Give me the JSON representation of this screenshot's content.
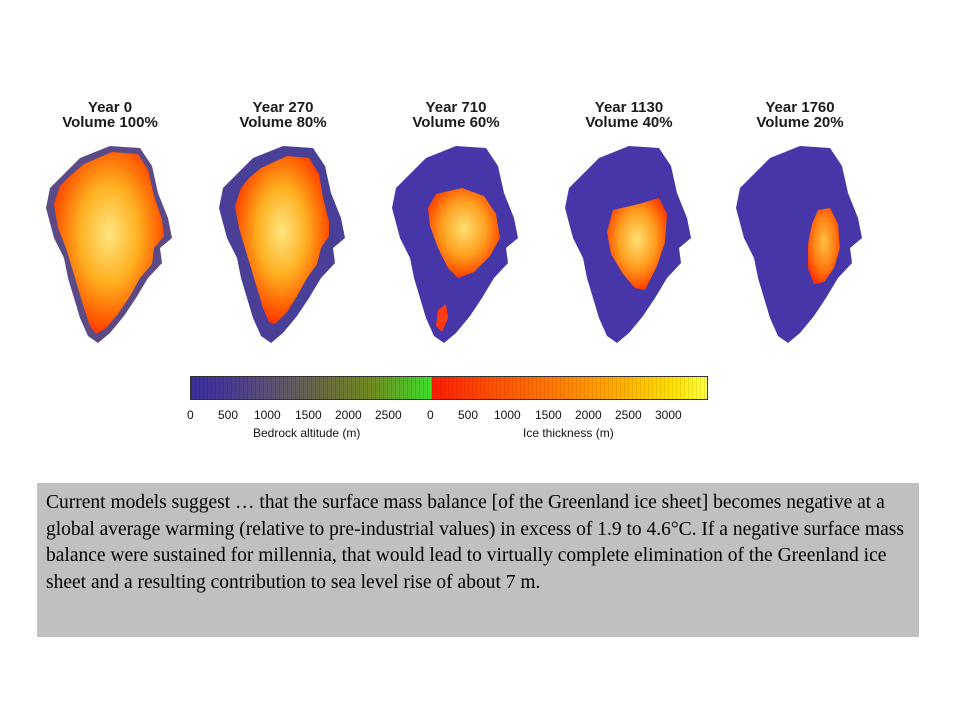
{
  "panels": [
    {
      "year": "Year 0",
      "volume": "Volume 100%",
      "volume_fraction": 1.0
    },
    {
      "year": "Year 270",
      "volume": "Volume 80%",
      "volume_fraction": 0.8
    },
    {
      "year": "Year 710",
      "volume": "Volume 60%",
      "volume_fraction": 0.6
    },
    {
      "year": "Year 1130",
      "volume": "Volume 40%",
      "volume_fraction": 0.4
    },
    {
      "year": "Year 1760",
      "volume": "Volume 20%",
      "volume_fraction": 0.2
    }
  ],
  "colorbar": {
    "bedrock_ticks": [
      "0",
      "500",
      "1000",
      "1500",
      "2000",
      "2500"
    ],
    "ice_ticks": [
      "0",
      "500",
      "1000",
      "1500",
      "2000",
      "2500",
      "3000"
    ],
    "bedrock_label": "Bedrock altitude (m)",
    "ice_label": "Ice thickness (m)"
  },
  "colors": {
    "bedrock_low": "#3a2f9c",
    "bedrock_high": "#3de02c",
    "ice_low": "#ff1a00",
    "ice_high": "#ffff40",
    "caption_bg": "#c0c0c0"
  },
  "caption": "Current models suggest … that the surface mass balance [of the Greenland ice sheet] becomes negative at a global average warming (relative to pre-industrial values) in excess of 1.9 to 4.6°C. If a negative surface mass balance were sustained for millennia, that would lead to virtually complete elimination of the Greenland ice sheet and a resulting contribution to sea level rise of about 7 m."
}
